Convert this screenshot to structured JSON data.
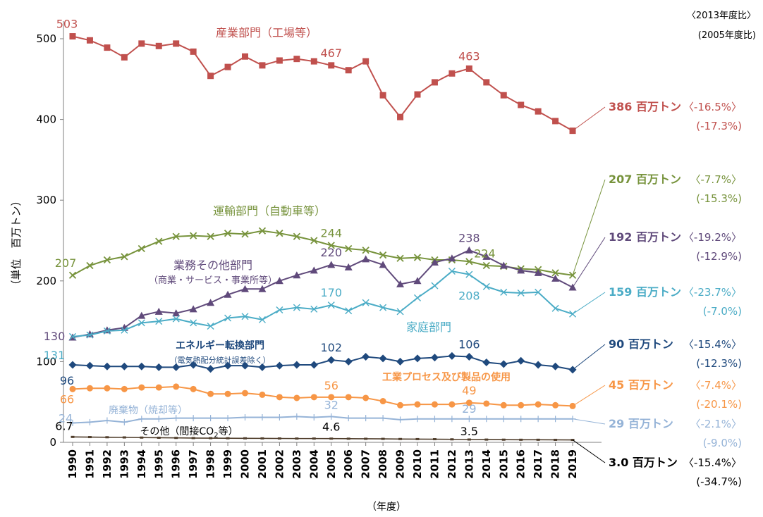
{
  "chart_data": {
    "type": "line",
    "title": "",
    "xlabel": "（年度）",
    "ylabel": "（単位　百万トン）",
    "ylim": [
      0,
      520
    ],
    "yticks": [
      0,
      100,
      200,
      300,
      400,
      500
    ],
    "grid": false,
    "legend": "none (series labelled inline)",
    "x": [
      1990,
      1991,
      1992,
      1993,
      1994,
      1995,
      1996,
      1997,
      1998,
      1999,
      2000,
      2001,
      2002,
      2003,
      2004,
      2005,
      2006,
      2007,
      2008,
      2009,
      2010,
      2011,
      2012,
      2013,
      2014,
      2015,
      2016,
      2017,
      2018,
      2019
    ],
    "comparison_headers": [
      "〈2013年度比〉",
      "(2005年度比)"
    ],
    "series": [
      {
        "name": "産業部門（工場等）",
        "color": "#c0504d",
        "marker": "square",
        "values": [
          503,
          498,
          489,
          477,
          494,
          491,
          494,
          484,
          454,
          465,
          478,
          467,
          473,
          475,
          472,
          467,
          461,
          472,
          430,
          403,
          431,
          446,
          457,
          463,
          446,
          430,
          418,
          410,
          398,
          386
        ],
        "point_labels": [
          {
            "i": 0,
            "text": "503"
          },
          {
            "i": 15,
            "text": "467"
          },
          {
            "i": 23,
            "text": "463"
          }
        ],
        "end_value": "386 百万トン",
        "vs2013": "〈-16.5%〉",
        "vs2005": "(-17.3%)"
      },
      {
        "name": "運輸部門（自動車等）",
        "color": "#77933c",
        "marker": "x",
        "values": [
          207,
          219,
          226,
          230,
          240,
          249,
          255,
          256,
          255,
          259,
          258,
          262,
          259,
          255,
          250,
          244,
          240,
          238,
          232,
          228,
          229,
          226,
          226,
          224,
          219,
          218,
          215,
          214,
          210,
          207
        ],
        "point_labels": [
          {
            "i": 0,
            "text": "207"
          },
          {
            "i": 15,
            "text": "244"
          },
          {
            "i": 23,
            "text": "224"
          }
        ],
        "end_value": "207 百万トン",
        "vs2013": "〈-7.7%〉",
        "vs2005": "(-15.3%)"
      },
      {
        "name": "業務その他部門",
        "sublabel": "（商業・サービス・事業所等）",
        "color": "#604a7b",
        "marker": "triangle",
        "values": [
          130,
          134,
          139,
          142,
          157,
          162,
          160,
          165,
          173,
          183,
          190,
          190,
          200,
          207,
          213,
          220,
          217,
          227,
          220,
          196,
          200,
          223,
          228,
          238,
          230,
          219,
          213,
          210,
          203,
          192
        ],
        "point_labels": [
          {
            "i": 0,
            "text": "130"
          },
          {
            "i": 15,
            "text": "220"
          },
          {
            "i": 23,
            "text": "238"
          }
        ],
        "end_value": "192 百万トン",
        "vs2013": "〈-19.2%〉",
        "vs2005": "(-12.9%)"
      },
      {
        "name": "家庭部門",
        "color": "#4bacc6",
        "marker": "star",
        "values": [
          131,
          133,
          138,
          139,
          148,
          150,
          153,
          148,
          144,
          154,
          156,
          152,
          164,
          167,
          165,
          170,
          163,
          173,
          167,
          162,
          179,
          194,
          212,
          208,
          193,
          186,
          185,
          186,
          166,
          159
        ],
        "point_labels": [
          {
            "i": 0,
            "text": "131"
          },
          {
            "i": 15,
            "text": "170"
          },
          {
            "i": 23,
            "text": "208"
          }
        ],
        "end_value": "159 百万トン",
        "vs2013": "〈-23.7%〉",
        "vs2005": "(-7.0%)"
      },
      {
        "name": "エネルギー転換部門",
        "sublabel": "（電気熱配分統計誤差除く）",
        "color": "#1f497d",
        "marker": "diamond",
        "values": [
          96,
          95,
          94,
          94,
          94,
          93,
          93,
          96,
          91,
          95,
          95,
          93,
          95,
          96,
          96,
          102,
          100,
          106,
          104,
          100,
          104,
          105,
          107,
          106,
          99,
          97,
          101,
          96,
          94,
          90
        ],
        "point_labels": [
          {
            "i": 0,
            "text": "96"
          },
          {
            "i": 15,
            "text": "102"
          },
          {
            "i": 23,
            "text": "106"
          }
        ],
        "end_value": "90 百万トン",
        "vs2013": "〈-15.4%〉",
        "vs2005": "(-12.3%)"
      },
      {
        "name": "工業プロセス及び製品の使用",
        "color": "#f79646",
        "marker": "circle",
        "values": [
          66,
          67,
          67,
          66,
          68,
          68,
          69,
          66,
          60,
          60,
          61,
          59,
          56,
          55,
          56,
          56,
          56,
          55,
          51,
          46,
          47,
          47,
          47,
          49,
          48,
          46,
          46,
          47,
          46,
          45
        ],
        "point_labels": [
          {
            "i": 0,
            "text": "66"
          },
          {
            "i": 15,
            "text": "56"
          },
          {
            "i": 23,
            "text": "49"
          }
        ],
        "end_value": "45 百万トン",
        "vs2013": "〈-7.4%〉",
        "vs2005": "(-20.1%)"
      },
      {
        "name": "廃棄物（焼却等）",
        "color": "#95b3d7",
        "marker": "plus",
        "values": [
          24,
          25,
          27,
          25,
          29,
          29,
          30,
          30,
          30,
          30,
          31,
          31,
          31,
          32,
          31,
          32,
          30,
          30,
          30,
          28,
          29,
          29,
          29,
          29,
          29,
          29,
          29,
          29,
          29,
          29
        ],
        "point_labels": [
          {
            "i": 0,
            "text": "24"
          },
          {
            "i": 15,
            "text": "32"
          },
          {
            "i": 23,
            "text": "29"
          }
        ],
        "end_value": "29 百万トン",
        "vs2013": "〈-2.1%〉",
        "vs2005": "(-9.0%)"
      },
      {
        "name": "その他（間接CO",
        "name_sub": "2",
        "name_tail": "等）",
        "color": "#4f3d2b",
        "marker": "dash",
        "values": [
          6.7,
          6.5,
          6.3,
          6.1,
          5.9,
          5.7,
          5.5,
          5.3,
          5.2,
          5.1,
          5.0,
          4.9,
          4.8,
          4.7,
          4.7,
          4.6,
          4.5,
          4.4,
          4.3,
          4.1,
          4.0,
          3.9,
          3.7,
          3.5,
          3.4,
          3.3,
          3.2,
          3.2,
          3.1,
          3.0
        ],
        "point_labels": [
          {
            "i": 0,
            "text": "6.7"
          },
          {
            "i": 15,
            "text": "4.6"
          },
          {
            "i": 23,
            "text": "3.5"
          }
        ],
        "end_value": "3.0 百万トン",
        "vs2013": "〈-15.4%〉",
        "vs2005": "(-34.7%)"
      }
    ]
  }
}
